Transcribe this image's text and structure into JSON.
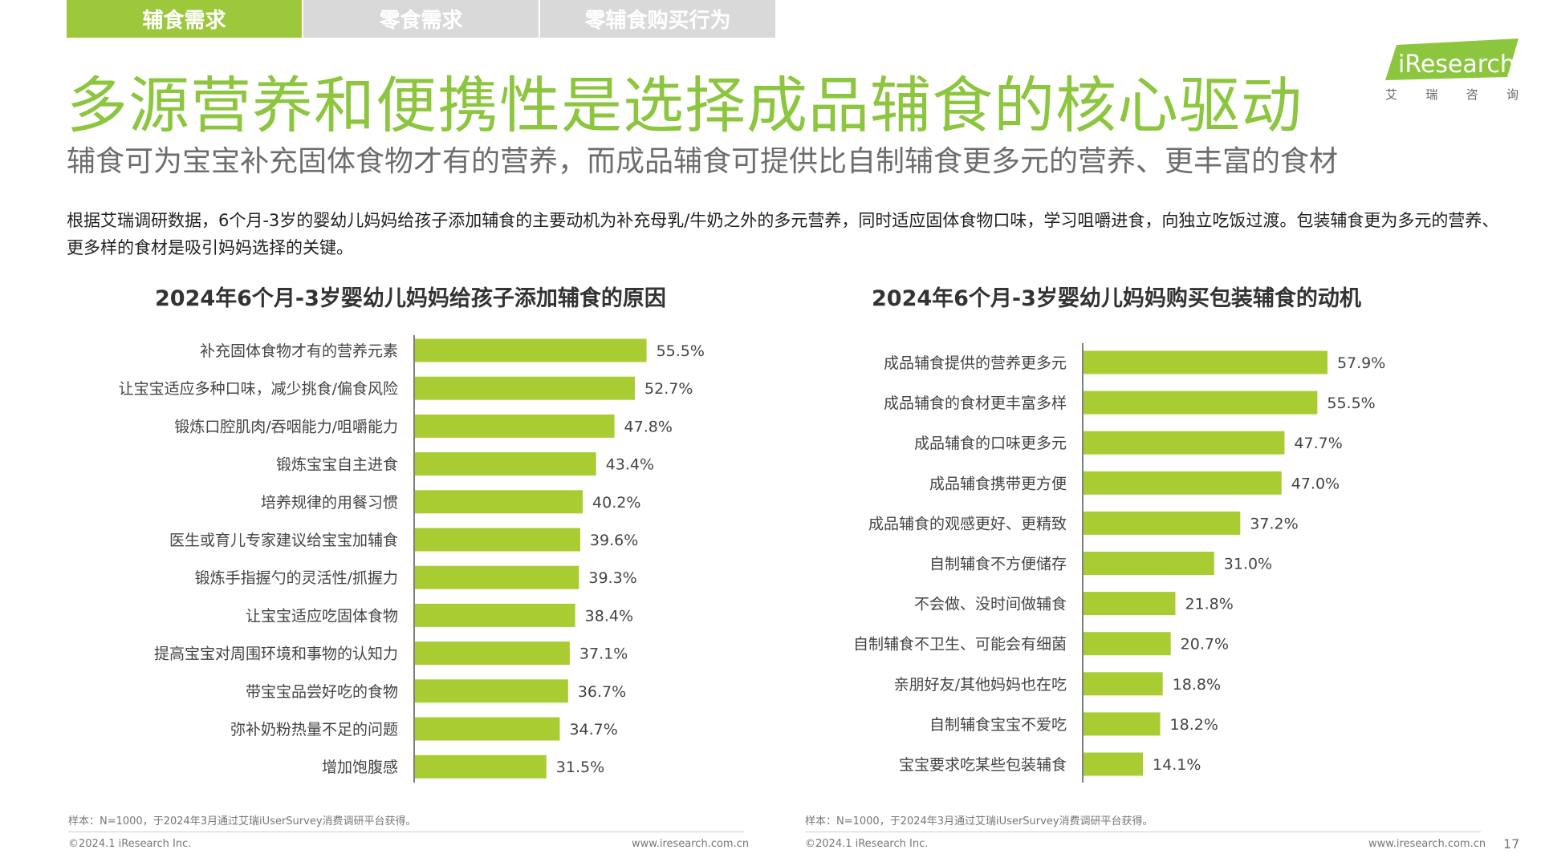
{
  "tabs": [
    {
      "label": "辅食需求",
      "active": true
    },
    {
      "label": "零食需求",
      "active": false
    },
    {
      "label": "零辅食购买行为",
      "active": false
    }
  ],
  "logo": {
    "text": "iResearch",
    "chars": [
      "艾",
      "瑞",
      "咨",
      "询"
    ]
  },
  "title": "多源营养和便携性是选择成品辅食的核心驱动",
  "subtitle": "辅食可为宝宝补充固体食物才有的营养，而成品辅食可提供比自制辅食更多元的营养、更丰富的食材",
  "body_text": "根据艾瑞调研数据，6个月-3岁的婴幼儿妈妈给孩子添加辅食的主要动机为补充母乳/牛奶之外的多元营养，同时适应固体食物口味，学习咀嚼进食，向独立吃饭过渡。包装辅食更为多元的营养、更多样的食材是吸引妈妈选择的关键。",
  "colors": {
    "accent": "#8cc63f",
    "bar": "#aacc33",
    "tab_active": "#9dc83c",
    "tab_inactive": "#d9d9d9"
  },
  "chart_data": [
    {
      "type": "bar",
      "orientation": "horizontal",
      "title": "2024年6个月-3岁婴幼儿妈妈给孩子添加辅食的原因",
      "categories": [
        "补充固体食物才有的营养元素",
        "让宝宝适应多种口味，减少挑食/偏食风险",
        "锻炼口腔肌肉/吞咽能力/咀嚼能力",
        "锻炼宝宝自主进食",
        "培养规律的用餐习惯",
        "医生或育儿专家建议给宝宝加辅食",
        "锻炼手指握勺的灵活性/抓握力",
        "让宝宝适应吃固体食物",
        "提高宝宝对周围环境和事物的认知力",
        "带宝宝品尝好吃的食物",
        "弥补奶粉热量不足的问题",
        "增加饱腹感"
      ],
      "values": [
        55.5,
        52.7,
        47.8,
        43.4,
        40.2,
        39.6,
        39.3,
        38.4,
        37.1,
        36.7,
        34.7,
        31.5
      ],
      "value_labels": [
        "55.5%",
        "52.7%",
        "47.8%",
        "43.4%",
        "40.2%",
        "39.6%",
        "39.3%",
        "38.4%",
        "37.1%",
        "36.7%",
        "34.7%",
        "31.5%"
      ],
      "unit": "%"
    },
    {
      "type": "bar",
      "orientation": "horizontal",
      "title": "2024年6个月-3岁婴幼儿妈妈购买包装辅食的动机",
      "categories": [
        "成品辅食提供的营养更多元",
        "成品辅食的食材更丰富多样",
        "成品辅食的口味更多元",
        "成品辅食携带更方便",
        "成品辅食的观感更好、更精致",
        "自制辅食不方便储存",
        "不会做、没时间做辅食",
        "自制辅食不卫生、可能会有细菌",
        "亲朋好友/其他妈妈也在吃",
        "自制辅食宝宝不爱吃",
        "宝宝要求吃某些包装辅食"
      ],
      "values": [
        57.9,
        55.5,
        47.7,
        47.0,
        37.2,
        31.0,
        21.8,
        20.7,
        18.8,
        18.2,
        14.1
      ],
      "value_labels": [
        "57.9%",
        "55.5%",
        "47.7%",
        "47.0%",
        "37.2%",
        "31.0%",
        "21.8%",
        "20.7%",
        "18.8%",
        "18.2%",
        "14.1%"
      ],
      "unit": "%"
    }
  ],
  "notes": {
    "left_sample": "样本：N=1000，于2024年3月通过艾瑞iUserSurvey消费调研平台获得。",
    "right_sample": "样本：N=1000，于2024年3月通过艾瑞iUserSurvey消费调研平台获得。"
  },
  "footer": {
    "copyright": "©2024.1 iResearch Inc.",
    "website": "www.iresearch.com.cn",
    "page_number": "17"
  }
}
